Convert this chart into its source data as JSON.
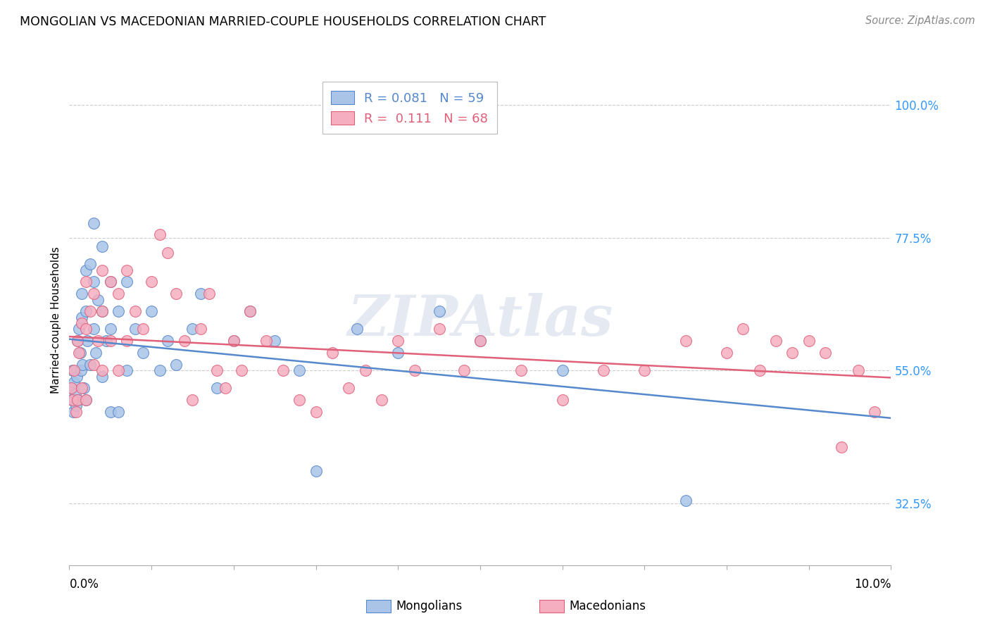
{
  "title": "MONGOLIAN VS MACEDONIAN MARRIED-COUPLE HOUSEHOLDS CORRELATION CHART",
  "source": "Source: ZipAtlas.com",
  "ylabel": "Married-couple Households",
  "yticks": [
    0.325,
    0.55,
    0.775,
    1.0
  ],
  "ytick_labels": [
    "32.5%",
    "55.0%",
    "77.5%",
    "100.0%"
  ],
  "mongolian_color": "#aac4e8",
  "macedonian_color": "#f5aec0",
  "mongolian_line_color": "#5588cc",
  "macedonian_line_color": "#e0607a",
  "mongolian_R": 0.081,
  "mongolian_N": 59,
  "macedonian_R": 0.111,
  "macedonian_N": 68,
  "legend_label_mongolians": "Mongolians",
  "legend_label_macedonians": "Macedonians",
  "watermark": "ZIPAtlas",
  "xlim": [
    0.0,
    0.1
  ],
  "ylim": [
    0.22,
    1.05
  ],
  "mongolian_x": [
    0.0002,
    0.0003,
    0.0004,
    0.0005,
    0.0006,
    0.0007,
    0.0008,
    0.0009,
    0.001,
    0.001,
    0.0012,
    0.0013,
    0.0014,
    0.0015,
    0.0015,
    0.0016,
    0.0018,
    0.002,
    0.002,
    0.002,
    0.0022,
    0.0025,
    0.0025,
    0.003,
    0.003,
    0.003,
    0.0032,
    0.0035,
    0.004,
    0.004,
    0.004,
    0.0045,
    0.005,
    0.005,
    0.005,
    0.006,
    0.006,
    0.007,
    0.007,
    0.008,
    0.009,
    0.01,
    0.011,
    0.012,
    0.013,
    0.015,
    0.016,
    0.018,
    0.02,
    0.022,
    0.025,
    0.028,
    0.03,
    0.035,
    0.04,
    0.045,
    0.05,
    0.06,
    0.075
  ],
  "mongolian_y": [
    0.52,
    0.5,
    0.55,
    0.48,
    0.53,
    0.51,
    0.49,
    0.54,
    0.6,
    0.5,
    0.62,
    0.58,
    0.55,
    0.68,
    0.64,
    0.56,
    0.52,
    0.72,
    0.65,
    0.5,
    0.6,
    0.73,
    0.56,
    0.8,
    0.7,
    0.62,
    0.58,
    0.67,
    0.76,
    0.65,
    0.54,
    0.6,
    0.7,
    0.62,
    0.48,
    0.65,
    0.48,
    0.7,
    0.55,
    0.62,
    0.58,
    0.65,
    0.55,
    0.6,
    0.56,
    0.62,
    0.68,
    0.52,
    0.6,
    0.65,
    0.6,
    0.55,
    0.38,
    0.62,
    0.58,
    0.65,
    0.6,
    0.55,
    0.33
  ],
  "macedonian_x": [
    0.0002,
    0.0004,
    0.0006,
    0.0008,
    0.001,
    0.001,
    0.0012,
    0.0015,
    0.0015,
    0.002,
    0.002,
    0.002,
    0.0025,
    0.003,
    0.003,
    0.0035,
    0.004,
    0.004,
    0.004,
    0.005,
    0.005,
    0.006,
    0.006,
    0.007,
    0.007,
    0.008,
    0.009,
    0.01,
    0.011,
    0.012,
    0.013,
    0.014,
    0.015,
    0.016,
    0.017,
    0.018,
    0.019,
    0.02,
    0.021,
    0.022,
    0.024,
    0.026,
    0.028,
    0.03,
    0.032,
    0.034,
    0.036,
    0.038,
    0.04,
    0.042,
    0.045,
    0.048,
    0.05,
    0.055,
    0.06,
    0.065,
    0.07,
    0.075,
    0.08,
    0.082,
    0.084,
    0.086,
    0.088,
    0.09,
    0.092,
    0.094,
    0.096,
    0.098
  ],
  "macedonian_y": [
    0.52,
    0.5,
    0.55,
    0.48,
    0.6,
    0.5,
    0.58,
    0.63,
    0.52,
    0.7,
    0.62,
    0.5,
    0.65,
    0.68,
    0.56,
    0.6,
    0.72,
    0.65,
    0.55,
    0.7,
    0.6,
    0.68,
    0.55,
    0.72,
    0.6,
    0.65,
    0.62,
    0.7,
    0.78,
    0.75,
    0.68,
    0.6,
    0.5,
    0.62,
    0.68,
    0.55,
    0.52,
    0.6,
    0.55,
    0.65,
    0.6,
    0.55,
    0.5,
    0.48,
    0.58,
    0.52,
    0.55,
    0.5,
    0.6,
    0.55,
    0.62,
    0.55,
    0.6,
    0.55,
    0.5,
    0.55,
    0.55,
    0.6,
    0.58,
    0.62,
    0.55,
    0.6,
    0.58,
    0.6,
    0.58,
    0.42,
    0.55,
    0.48
  ]
}
